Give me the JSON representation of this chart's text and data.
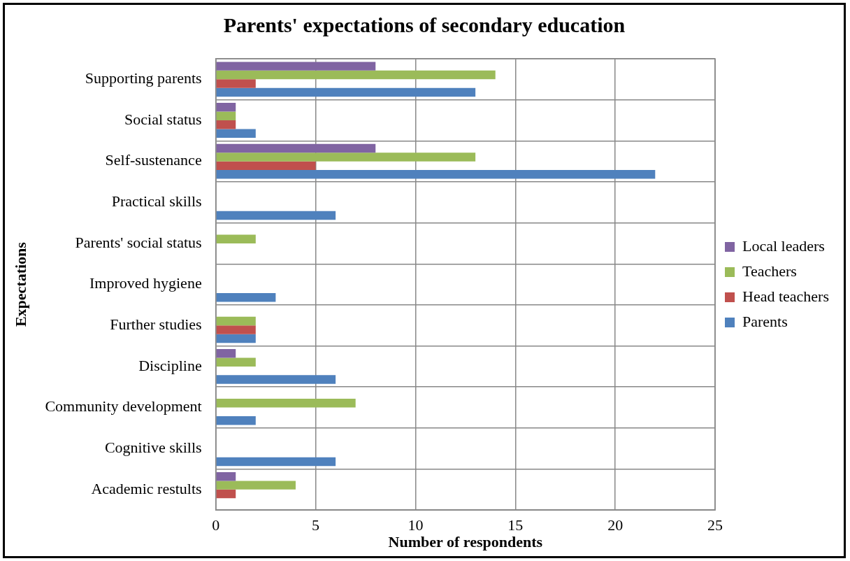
{
  "chart_data": {
    "type": "bar",
    "orientation": "horizontal",
    "title": "Parents' expectations of secondary education",
    "xlabel": "Number of respondents",
    "ylabel": "Expectations",
    "categories": [
      "Supporting parents",
      "Social status",
      "Self-sustenance",
      "Practical skills",
      "Parents' social status",
      "Improved hygiene",
      "Further studies",
      "Discipline",
      "Community development",
      "Cognitive skills",
      "Academic restults"
    ],
    "series": [
      {
        "name": "Local leaders",
        "color": "#8064a2",
        "values": [
          8,
          1,
          8,
          0,
          0,
          0,
          0,
          1,
          0,
          0,
          1
        ]
      },
      {
        "name": "Teachers",
        "color": "#9bbb59",
        "values": [
          14,
          1,
          13,
          0,
          2,
          0,
          2,
          2,
          7,
          0,
          4
        ]
      },
      {
        "name": "Head teachers",
        "color": "#c0504d",
        "values": [
          2,
          1,
          5,
          0,
          0,
          0,
          2,
          0,
          0,
          0,
          1
        ]
      },
      {
        "name": "Parents",
        "color": "#4f81bd",
        "values": [
          13,
          2,
          22,
          6,
          0,
          3,
          2,
          6,
          2,
          6,
          0
        ]
      }
    ],
    "xlim": [
      0,
      25
    ],
    "xticks": [
      0,
      5,
      10,
      15,
      20,
      25
    ],
    "grid": true,
    "legend": "right"
  }
}
